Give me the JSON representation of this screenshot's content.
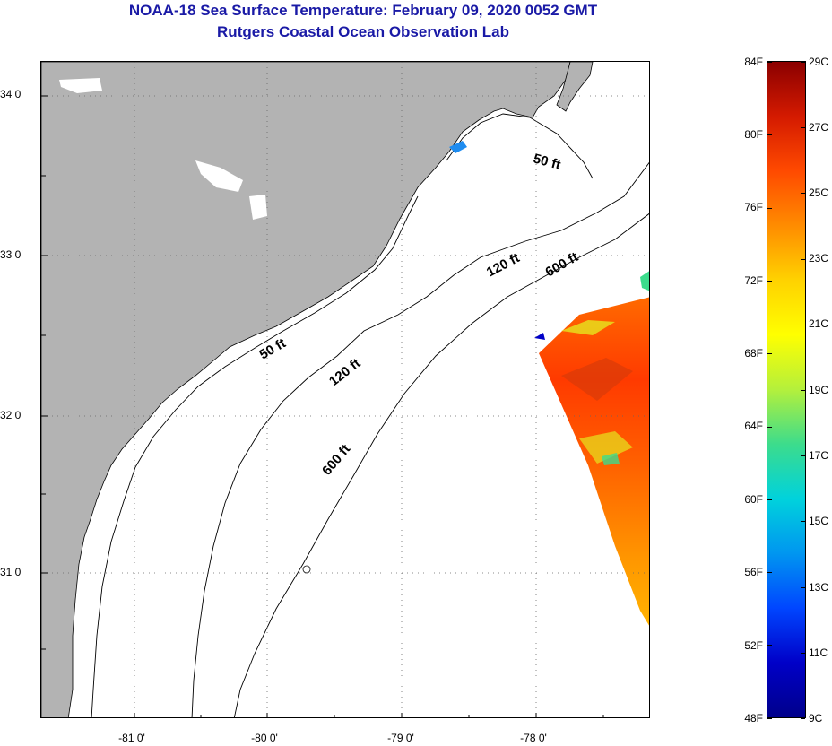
{
  "header": {
    "title": "NOAA-18 Sea Surface Temperature:  February 09, 2020 0052 GMT",
    "subtitle": "Rutgers Coastal Ocean Observation Lab"
  },
  "map": {
    "lat_labels": [
      "34 0'",
      "33 0'",
      "32 0'",
      "31 0'"
    ],
    "lon_labels": [
      "-81 0'",
      "-80 0'",
      "-79 0'",
      "-78 0'"
    ],
    "isobath_labels": [
      "50 ft",
      "50 ft",
      "120 ft",
      "120 ft",
      "600 ft",
      "600 ft"
    ],
    "colors": {
      "land": "#b3b3b3",
      "water": "#ffffff",
      "frame": "#000000",
      "title": "#1a1aa6"
    }
  },
  "colorbar": {
    "fahrenheit_labels": [
      "84F",
      "80F",
      "76F",
      "72F",
      "68F",
      "64F",
      "60F",
      "56F",
      "52F",
      "48F"
    ],
    "celsius_labels": [
      "29C",
      "27C",
      "25C",
      "23C",
      "21C",
      "19C",
      "17C",
      "15C",
      "13C",
      "11C",
      "9C"
    ],
    "gradient": [
      "#8b0000",
      "#d41a00",
      "#ff4a00",
      "#ff8c00",
      "#ffd200",
      "#ffff00",
      "#b4f03c",
      "#3cdc8c",
      "#00d2dc",
      "#0096f0",
      "#0046ff",
      "#0000c8",
      "#00008b"
    ]
  }
}
